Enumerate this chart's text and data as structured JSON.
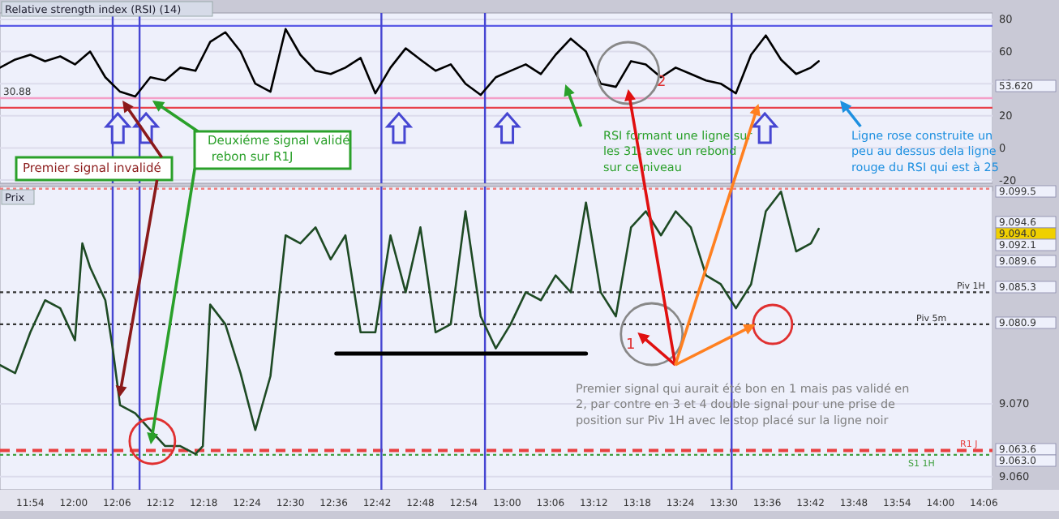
{
  "chart_data": [
    {
      "type": "line",
      "title": "Relative strength index (RSI) (14)",
      "xlim": [
        11.83,
        14.12
      ],
      "ylim": [
        -22,
        84
      ],
      "yticks": [
        80,
        60,
        40,
        20,
        0,
        -20
      ],
      "tick_labels": "y",
      "grid": "y",
      "series": [
        {
          "color": "#000000",
          "x": [
            11.83,
            11.865,
            11.9,
            11.934,
            11.969,
            12.003,
            12.038,
            12.073,
            12.107,
            12.142,
            12.177,
            12.211,
            12.246,
            12.281,
            12.315,
            12.35,
            12.385,
            12.419,
            12.454,
            12.489,
            12.523,
            12.558,
            12.593,
            12.627,
            12.662,
            12.696,
            12.731,
            12.766,
            12.8,
            12.835,
            12.87,
            12.904,
            12.939,
            12.974,
            13.008,
            13.043,
            13.078,
            13.112,
            13.147,
            13.182,
            13.216,
            13.251,
            13.286,
            13.32,
            13.355,
            13.389,
            13.424,
            13.459,
            13.493,
            13.528,
            13.563,
            13.597,
            13.632,
            13.667,
            13.701,
            13.719
          ],
          "values": [
            50,
            55,
            58,
            54,
            57,
            52,
            60,
            44,
            35,
            32,
            44,
            42,
            50,
            48,
            66,
            72,
            60,
            40,
            35,
            74,
            58,
            48,
            46,
            50,
            56,
            34,
            50,
            62,
            55,
            48,
            52,
            40,
            33,
            44,
            48,
            52,
            46,
            58,
            68,
            60,
            40,
            38,
            54,
            52,
            44,
            50,
            46,
            42,
            40,
            34,
            58,
            70,
            55,
            46,
            50,
            54
          ]
        }
      ],
      "ref_lines": [
        {
          "axis": "y",
          "value": 76,
          "color": "#5a5ae6",
          "line_style": "solid"
        },
        {
          "axis": "y",
          "value": 31,
          "color": "#f4a0c8",
          "line_style": "solid"
        },
        {
          "axis": "y",
          "value": 25,
          "color": "#e8404a",
          "line_style": "solid"
        },
        {
          "axis": "x",
          "value": 12.09,
          "color": "#4646d2",
          "line_style": "solid"
        },
        {
          "axis": "x",
          "value": 12.152,
          "color": "#4646d2",
          "line_style": "solid"
        },
        {
          "axis": "x",
          "value": 12.71,
          "color": "#4646d2",
          "line_style": "solid"
        },
        {
          "axis": "x",
          "value": 12.949,
          "color": "#4646d2",
          "line_style": "solid"
        },
        {
          "axis": "x",
          "value": 13.518,
          "color": "#4646d2",
          "line_style": "solid"
        }
      ],
      "annotations": [
        {
          "text": "30.88",
          "x": 11.83,
          "y": 30.88
        },
        "53.620",
        "Premier signal invalidé",
        "Deuxiéme signal validé\n rebon sur R1J",
        "RSI formant une ligne sur\nles 31, avec un rebond\nsur ce niveau",
        "Ligne rose construite un\npeu au dessus dela ligne\nrouge du RSI qui est à 25",
        "2"
      ]
    },
    {
      "type": "line",
      "title": "Prix",
      "xlim": [
        11.83,
        14.12
      ],
      "ylim": [
        9058.2,
        9099.8
      ],
      "grid": "y",
      "xticks": [
        {
          "value": 11.9,
          "label": "11:54"
        },
        {
          "value": 12,
          "label": "12:00"
        },
        {
          "value": 12.1,
          "label": "12:06"
        },
        {
          "value": 12.2,
          "label": "12:12"
        },
        {
          "value": 12.3,
          "label": "12:18"
        },
        {
          "value": 12.4,
          "label": "12:24"
        },
        {
          "value": 12.5,
          "label": "12:30"
        },
        {
          "value": 12.6,
          "label": "12:36"
        },
        {
          "value": 12.7,
          "label": "12:42"
        },
        {
          "value": 12.8,
          "label": "12:48"
        },
        {
          "value": 12.9,
          "label": "12:54"
        },
        {
          "value": 13,
          "label": "13:00"
        },
        {
          "value": 13.1,
          "label": "13:06"
        },
        {
          "value": 13.2,
          "label": "13:12"
        },
        {
          "value": 13.3,
          "label": "13:18"
        },
        {
          "value": 13.4,
          "label": "13:24"
        },
        {
          "value": 13.5,
          "label": "13:30"
        },
        {
          "value": 13.6,
          "label": "13:36"
        },
        {
          "value": 13.7,
          "label": "13:42"
        },
        {
          "value": 13.8,
          "label": "13:48"
        },
        {
          "value": 13.9,
          "label": "13:54"
        },
        {
          "value": 14,
          "label": "14:00"
        },
        {
          "value": 14.1,
          "label": "14:06"
        }
      ],
      "yticks": [
        {
          "value": 9060,
          "label": "9.060"
        },
        {
          "value": 9070,
          "label": "9.070"
        }
      ],
      "series": [
        {
          "color": "#1e4a24",
          "x": [
            11.83,
            11.865,
            11.9,
            11.934,
            11.969,
            12.003,
            12.02,
            12.038,
            12.073,
            12.09,
            12.107,
            12.142,
            12.177,
            12.211,
            12.246,
            12.281,
            12.298,
            12.315,
            12.35,
            12.385,
            12.419,
            12.454,
            12.489,
            12.523,
            12.558,
            12.593,
            12.627,
            12.662,
            12.696,
            12.731,
            12.766,
            12.8,
            12.835,
            12.87,
            12.904,
            12.939,
            12.974,
            13.008,
            13.043,
            13.078,
            13.112,
            13.147,
            13.182,
            13.216,
            13.251,
            13.286,
            13.32,
            13.355,
            13.389,
            13.424,
            13.459,
            13.493,
            13.528,
            13.563,
            13.597,
            13.632,
            13.667,
            13.701,
            13.719
          ],
          "values": [
            9075.3,
            9074.2,
            9079.8,
            9084.2,
            9083.1,
            9078.7,
            9092.0,
            9088.7,
            9084.2,
            9077.6,
            9069.8,
            9068.7,
            9066.4,
            9064.2,
            9064.2,
            9063.1,
            9064.2,
            9083.6,
            9080.9,
            9074.2,
            9066.4,
            9073.8,
            9093.1,
            9092.0,
            9094.2,
            9089.8,
            9093.1,
            9079.8,
            9079.8,
            9093.1,
            9085.3,
            9094.2,
            9079.8,
            9080.9,
            9096.4,
            9082.0,
            9077.6,
            9080.9,
            9085.3,
            9084.2,
            9087.6,
            9085.3,
            9097.6,
            9085.3,
            9082.0,
            9094.2,
            9096.4,
            9093.1,
            9096.4,
            9094.2,
            9087.6,
            9086.4,
            9083.1,
            9086.4,
            9096.4,
            9099.1,
            9090.9,
            9092.0,
            9094.0
          ]
        },
        {
          "color": "#000000",
          "x": [
            12.606,
            13.182
          ],
          "values": [
            9076.9,
            9076.9
          ]
        }
      ],
      "ref_lines": [
        {
          "axis": "y",
          "value": 9099.5,
          "color": "#f08080",
          "line_style": "dotted"
        },
        {
          "axis": "y",
          "value": 9085.3,
          "label": "Piv 1H",
          "color": "#333333",
          "line_style": "dotted"
        },
        {
          "axis": "y",
          "value": 9080.9,
          "label": "Piv 5m",
          "color": "#333333",
          "line_style": "dotted"
        },
        {
          "axis": "y",
          "value": 9063.6,
          "label": "R1 J",
          "color": "#e84040",
          "line_style": "dashed"
        },
        {
          "axis": "y",
          "value": 9063.0,
          "label": "S1 1H",
          "color": "#40a040",
          "line_style": "dotted"
        },
        {
          "axis": "x",
          "value": 12.09,
          "color": "#4646d2",
          "line_style": "solid"
        },
        {
          "axis": "x",
          "value": 12.152,
          "color": "#4646d2",
          "line_style": "solid"
        },
        {
          "axis": "x",
          "value": 12.71,
          "color": "#4646d2",
          "line_style": "solid"
        },
        {
          "axis": "x",
          "value": 12.949,
          "color": "#4646d2",
          "line_style": "solid"
        },
        {
          "axis": "x",
          "value": 13.518,
          "color": "#4646d2",
          "line_style": "solid"
        }
      ],
      "annotations": [
        "9.099.5",
        "9.094.6",
        "9.094.0",
        "9.092.1",
        "9.089.6",
        "9.085.3",
        "9.080.9",
        "9.063.6",
        "9.063.0",
        "Premier signal qui aurait été bon en 1 mais pas validé en\n2, par contre en 3 et 4 double signal pour une prise de\nposition sur Piv 1H avec le stop placé sur la ligne noir",
        "1"
      ]
    }
  ]
}
